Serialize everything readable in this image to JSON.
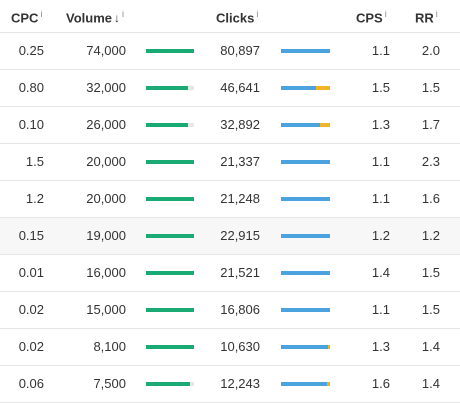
{
  "columns": {
    "cpc": "CPC",
    "volume": "Volume",
    "clicks": "Clicks",
    "cps": "CPS",
    "rr": "RR",
    "info_glyph": "i",
    "sort_glyph": "↓"
  },
  "colors": {
    "volume_bar": "#1aaa73",
    "clicks_organic": "#4aa3df",
    "clicks_paid": "#f0b429",
    "track": "#e8e8e8",
    "alt_row": "#f7f7f7"
  },
  "rows": [
    {
      "cpc": "0.25",
      "volume": "74,000",
      "volume_level": 1.0,
      "clicks": "80,897",
      "clicks_level": 1.0,
      "paid_share": 0.0,
      "cps": "1.1",
      "rr": "2.0"
    },
    {
      "cpc": "0.80",
      "volume": "32,000",
      "volume_level": 0.88,
      "clicks": "46,641",
      "clicks_level": 1.0,
      "paid_share": 0.28,
      "cps": "1.5",
      "rr": "1.5"
    },
    {
      "cpc": "0.10",
      "volume": "26,000",
      "volume_level": 0.88,
      "clicks": "32,892",
      "clicks_level": 1.0,
      "paid_share": 0.2,
      "cps": "1.3",
      "rr": "1.7"
    },
    {
      "cpc": "1.5",
      "volume": "20,000",
      "volume_level": 1.0,
      "clicks": "21,337",
      "clicks_level": 1.0,
      "paid_share": 0.0,
      "cps": "1.1",
      "rr": "2.3"
    },
    {
      "cpc": "1.2",
      "volume": "20,000",
      "volume_level": 1.0,
      "clicks": "21,248",
      "clicks_level": 1.0,
      "paid_share": 0.0,
      "cps": "1.1",
      "rr": "1.6"
    },
    {
      "cpc": "0.15",
      "volume": "19,000",
      "volume_level": 1.0,
      "clicks": "22,915",
      "clicks_level": 1.0,
      "paid_share": 0.0,
      "cps": "1.2",
      "rr": "1.2"
    },
    {
      "cpc": "0.01",
      "volume": "16,000",
      "volume_level": 1.0,
      "clicks": "21,521",
      "clicks_level": 1.0,
      "paid_share": 0.0,
      "cps": "1.4",
      "rr": "1.5"
    },
    {
      "cpc": "0.02",
      "volume": "15,000",
      "volume_level": 1.0,
      "clicks": "16,806",
      "clicks_level": 1.0,
      "paid_share": 0.0,
      "cps": "1.1",
      "rr": "1.5"
    },
    {
      "cpc": "0.02",
      "volume": "8,100",
      "volume_level": 1.0,
      "clicks": "10,630",
      "clicks_level": 1.0,
      "paid_share": 0.04,
      "cps": "1.3",
      "rr": "1.4"
    },
    {
      "cpc": "0.06",
      "volume": "7,500",
      "volume_level": 0.92,
      "clicks": "12,243",
      "clicks_level": 1.0,
      "paid_share": 0.06,
      "cps": "1.6",
      "rr": "1.4"
    }
  ]
}
